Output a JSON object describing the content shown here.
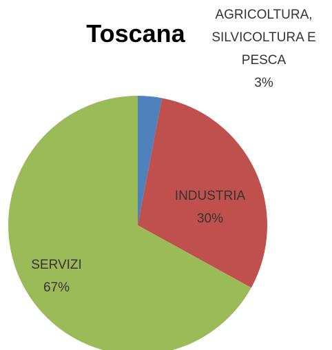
{
  "chart_data": {
    "type": "pie",
    "title": "Toscana",
    "categories": [
      "AGRICOLTURA, SILVICOLTURA E PESCA",
      "INDUSTRIA",
      "SERVIZI"
    ],
    "values": [
      3,
      30,
      67
    ],
    "value_labels": [
      "3%",
      "30%",
      "67%"
    ],
    "colors": [
      "#4f81bd",
      "#c0504d",
      "#9bbb59"
    ]
  }
}
